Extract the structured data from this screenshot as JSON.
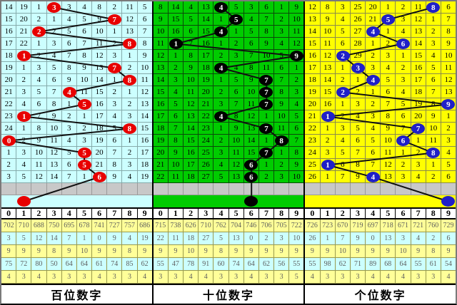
{
  "panels": [
    {
      "title": "百位数字",
      "colors": {
        "cell_bg": "#ccffff",
        "grid_line": "#86abab",
        "ball": "#e80000"
      },
      "header": [
        "0",
        "1",
        "2",
        "3",
        "4",
        "5",
        "6",
        "7",
        "8",
        "9"
      ],
      "rows": [
        {
          "cells": [
            "14",
            "19",
            "1",
            "3",
            "3",
            "4",
            "8",
            "2",
            "11",
            "5"
          ],
          "circle": 3
        },
        {
          "cells": [
            "15",
            "20",
            "2",
            "1",
            "4",
            "5",
            "9",
            "7",
            "12",
            "6"
          ],
          "circle": 7
        },
        {
          "cells": [
            "16",
            "21",
            "2",
            "2",
            "5",
            "6",
            "10",
            "1",
            "13",
            "7"
          ],
          "circle": 2
        },
        {
          "cells": [
            "17",
            "22",
            "1",
            "3",
            "6",
            "7",
            "11",
            "2",
            "8",
            "8"
          ],
          "circle": 8
        },
        {
          "cells": [
            "18",
            "1",
            "2",
            "4",
            "7",
            "8",
            "12",
            "3",
            "1",
            "9"
          ],
          "circle": 1
        },
        {
          "cells": [
            "19",
            "1",
            "3",
            "5",
            "8",
            "9",
            "13",
            "7",
            "2",
            "10"
          ],
          "circle": 7
        },
        {
          "cells": [
            "20",
            "2",
            "4",
            "6",
            "9",
            "10",
            "14",
            "1",
            "8",
            "11"
          ],
          "circle": 8
        },
        {
          "cells": [
            "21",
            "3",
            "5",
            "7",
            "4",
            "11",
            "15",
            "2",
            "1",
            "12"
          ],
          "circle": 4
        },
        {
          "cells": [
            "22",
            "4",
            "6",
            "8",
            "1",
            "5",
            "16",
            "3",
            "2",
            "13"
          ],
          "circle": 5
        },
        {
          "cells": [
            "23",
            "1",
            "7",
            "9",
            "2",
            "1",
            "17",
            "4",
            "3",
            "14"
          ],
          "circle": 1
        },
        {
          "cells": [
            "24",
            "1",
            "8",
            "10",
            "3",
            "2",
            "18",
            "5",
            "8",
            "15"
          ],
          "circle": 8
        },
        {
          "cells": [
            "0",
            "2",
            "9",
            "11",
            "4",
            "3",
            "19",
            "6",
            "1",
            "16"
          ],
          "circle": 0
        },
        {
          "cells": [
            "1",
            "3",
            "10",
            "12",
            "5",
            "5",
            "20",
            "7",
            "2",
            "17"
          ],
          "circle": 5
        },
        {
          "cells": [
            "2",
            "4",
            "11",
            "13",
            "6",
            "5",
            "21",
            "8",
            "3",
            "18"
          ],
          "circle": 5
        },
        {
          "cells": [
            "3",
            "5",
            "12",
            "14",
            "7",
            "1",
            "6",
            "9",
            "4",
            "19"
          ],
          "circle": 6
        }
      ],
      "gray_row": {
        "circle": 1,
        "label": "1"
      },
      "summary": [
        [
          "702",
          "710",
          "688",
          "750",
          "695",
          "678",
          "741",
          "727",
          "757",
          "686"
        ],
        [
          "3",
          "5",
          "12",
          "14",
          "7",
          "1",
          "0",
          "9",
          "4",
          "19"
        ],
        [
          "9",
          "9",
          "9",
          "8",
          "9",
          "10",
          "9",
          "9",
          "8",
          "9"
        ],
        [
          "75",
          "72",
          "80",
          "50",
          "64",
          "64",
          "61",
          "74",
          "85",
          "62"
        ],
        [
          "4",
          "3",
          "4",
          "3",
          "3",
          "3",
          "4",
          "3",
          "3",
          "4"
        ]
      ]
    },
    {
      "title": "十位数字",
      "colors": {
        "cell_bg": "#00cc00",
        "grid_line": "#0a4a0a",
        "ball": "#000000"
      },
      "header": [
        "0",
        "1",
        "2",
        "3",
        "4",
        "5",
        "6",
        "7",
        "8",
        "9"
      ],
      "rows": [
        {
          "cells": [
            "8",
            "14",
            "4",
            "13",
            "4",
            "5",
            "3",
            "6",
            "1",
            "9"
          ],
          "circle": 4
        },
        {
          "cells": [
            "9",
            "15",
            "5",
            "14",
            "1",
            "5",
            "4",
            "7",
            "2",
            "10"
          ],
          "circle": 5
        },
        {
          "cells": [
            "10",
            "16",
            "6",
            "15",
            "4",
            "1",
            "5",
            "8",
            "3",
            "11"
          ],
          "circle": 4
        },
        {
          "cells": [
            "11",
            "1",
            "7",
            "16",
            "1",
            "2",
            "6",
            "9",
            "4",
            "12"
          ],
          "circle": 1
        },
        {
          "cells": [
            "12",
            "1",
            "8",
            "17",
            "2",
            "3",
            "7",
            "10",
            "5",
            "9"
          ],
          "circle": 9
        },
        {
          "cells": [
            "13",
            "2",
            "9",
            "18",
            "4",
            "4",
            "8",
            "11",
            "6",
            "1"
          ],
          "circle": 4
        },
        {
          "cells": [
            "14",
            "3",
            "10",
            "19",
            "1",
            "5",
            "9",
            "7",
            "7",
            "2"
          ],
          "circle": 7
        },
        {
          "cells": [
            "15",
            "4",
            "11",
            "20",
            "2",
            "6",
            "10",
            "7",
            "8",
            "3"
          ],
          "circle": 7
        },
        {
          "cells": [
            "16",
            "5",
            "12",
            "21",
            "3",
            "7",
            "11",
            "7",
            "9",
            "4"
          ],
          "circle": 7
        },
        {
          "cells": [
            "17",
            "6",
            "13",
            "22",
            "4",
            "8",
            "12",
            "1",
            "10",
            "5"
          ],
          "circle": 4
        },
        {
          "cells": [
            "18",
            "7",
            "14",
            "23",
            "1",
            "9",
            "13",
            "7",
            "11",
            "6"
          ],
          "circle": 7
        },
        {
          "cells": [
            "19",
            "8",
            "15",
            "24",
            "2",
            "10",
            "14",
            "1",
            "8",
            "7"
          ],
          "circle": 8
        },
        {
          "cells": [
            "20",
            "9",
            "16",
            "25",
            "3",
            "11",
            "15",
            "7",
            "1",
            "8"
          ],
          "circle": 7
        },
        {
          "cells": [
            "21",
            "10",
            "17",
            "26",
            "4",
            "12",
            "6",
            "1",
            "2",
            "9"
          ],
          "circle": 6
        },
        {
          "cells": [
            "22",
            "11",
            "18",
            "27",
            "5",
            "13",
            "6",
            "2",
            "3",
            "10"
          ],
          "circle": 6
        }
      ],
      "gray_row": {
        "circle": 6,
        "label": "6"
      },
      "summary": [
        [
          "715",
          "738",
          "626",
          "710",
          "762",
          "704",
          "746",
          "706",
          "705",
          "722"
        ],
        [
          "22",
          "11",
          "18",
          "27",
          "5",
          "13",
          "0",
          "2",
          "3",
          "10"
        ],
        [
          "9",
          "9",
          "10",
          "9",
          "8",
          "9",
          "9",
          "9",
          "9",
          "9"
        ],
        [
          "55",
          "47",
          "78",
          "91",
          "60",
          "74",
          "64",
          "62",
          "56",
          "55"
        ],
        [
          "3",
          "3",
          "4",
          "4",
          "3",
          "3",
          "4",
          "3",
          "3",
          "5"
        ]
      ]
    },
    {
      "title": "个位数字",
      "colors": {
        "cell_bg": "#ffff00",
        "grid_line": "#8a8a4a",
        "ball": "#1f1fc8"
      },
      "header": [
        "0",
        "1",
        "2",
        "3",
        "4",
        "5",
        "6",
        "7",
        "8",
        "9"
      ],
      "rows": [
        {
          "cells": [
            "12",
            "8",
            "3",
            "25",
            "20",
            "1",
            "2",
            "11",
            "8",
            "6"
          ],
          "circle": 8
        },
        {
          "cells": [
            "13",
            "9",
            "4",
            "26",
            "21",
            "5",
            "3",
            "12",
            "1",
            "7"
          ],
          "circle": 5
        },
        {
          "cells": [
            "14",
            "10",
            "5",
            "27",
            "4",
            "1",
            "4",
            "13",
            "2",
            "8"
          ],
          "circle": 4
        },
        {
          "cells": [
            "15",
            "11",
            "6",
            "28",
            "1",
            "2",
            "6",
            "14",
            "3",
            "9"
          ],
          "circle": 6
        },
        {
          "cells": [
            "16",
            "12",
            "2",
            "29",
            "2",
            "3",
            "1",
            "15",
            "4",
            "10"
          ],
          "circle": 2
        },
        {
          "cells": [
            "17",
            "13",
            "1",
            "3",
            "3",
            "4",
            "2",
            "16",
            "5",
            "11"
          ],
          "circle": 3
        },
        {
          "cells": [
            "18",
            "14",
            "2",
            "1",
            "4",
            "5",
            "3",
            "17",
            "6",
            "12"
          ],
          "circle": 4
        },
        {
          "cells": [
            "19",
            "15",
            "2",
            "2",
            "1",
            "6",
            "4",
            "18",
            "7",
            "13"
          ],
          "circle": 2
        },
        {
          "cells": [
            "20",
            "16",
            "1",
            "3",
            "2",
            "7",
            "5",
            "19",
            "8",
            "9"
          ],
          "circle": 9
        },
        {
          "cells": [
            "21",
            "1",
            "2",
            "4",
            "3",
            "8",
            "6",
            "20",
            "9",
            "1"
          ],
          "circle": 1
        },
        {
          "cells": [
            "22",
            "1",
            "3",
            "5",
            "4",
            "9",
            "7",
            "7",
            "10",
            "2"
          ],
          "circle": 7
        },
        {
          "cells": [
            "23",
            "2",
            "4",
            "6",
            "5",
            "10",
            "6",
            "1",
            "11",
            "3"
          ],
          "circle": 6
        },
        {
          "cells": [
            "24",
            "3",
            "5",
            "7",
            "6",
            "11",
            "1",
            "2",
            "8",
            "4"
          ],
          "circle": 8
        },
        {
          "cells": [
            "25",
            "1",
            "6",
            "8",
            "7",
            "12",
            "2",
            "3",
            "1",
            "5"
          ],
          "circle": 1
        },
        {
          "cells": [
            "26",
            "1",
            "7",
            "9",
            "4",
            "13",
            "3",
            "4",
            "2",
            "6"
          ],
          "circle": 4
        }
      ],
      "gray_row": {
        "circle": 9,
        "label": "9"
      },
      "summary": [
        [
          "726",
          "723",
          "670",
          "719",
          "697",
          "718",
          "671",
          "721",
          "760",
          "729"
        ],
        [
          "26",
          "1",
          "7",
          "9",
          "0",
          "13",
          "3",
          "4",
          "2",
          "6"
        ],
        [
          "9",
          "9",
          "10",
          "9",
          "9",
          "9",
          "10",
          "9",
          "8",
          "9"
        ],
        [
          "55",
          "98",
          "62",
          "71",
          "89",
          "68",
          "64",
          "55",
          "61",
          "54"
        ],
        [
          "4",
          "3",
          "3",
          "3",
          "4",
          "4",
          "4",
          "3",
          "3",
          "4"
        ]
      ]
    }
  ]
}
